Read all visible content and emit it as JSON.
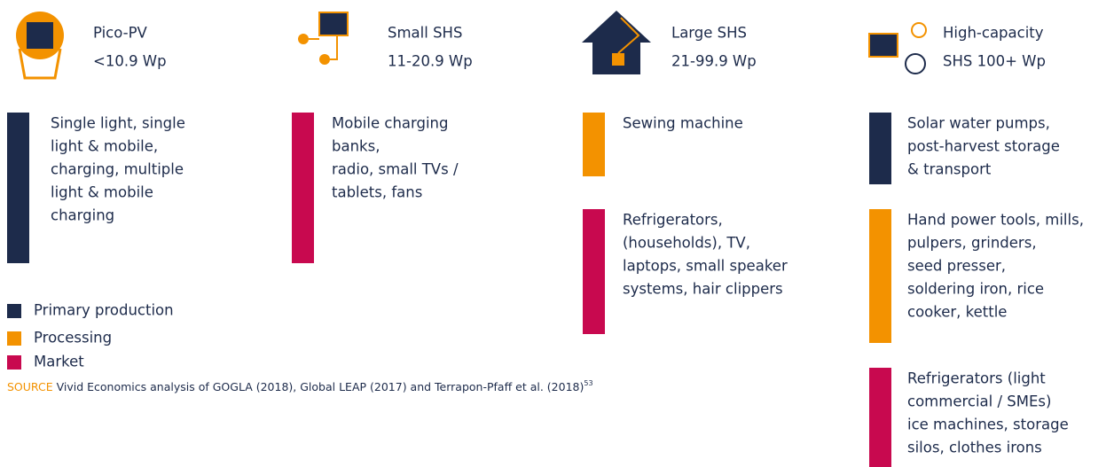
{
  "columns": [
    {
      "title": [
        "Pico-PV",
        "<10.9 Wp"
      ],
      "groups": [
        {
          "color": "#1d2b4b",
          "lines": [
            "Single light, single",
            "light & mobile,",
            "charging, multiple",
            "light & mobile",
            "charging"
          ]
        }
      ]
    },
    {
      "title": [
        "Small SHS",
        "11-20.9 Wp"
      ],
      "groups": [
        {
          "color": "#c8094f",
          "lines": [
            "Mobile charging",
            "banks,",
            "radio, small TVs /",
            "tablets, fans"
          ]
        }
      ]
    },
    {
      "title": [
        "Large SHS",
        "21-99.9 Wp"
      ],
      "groups": [
        {
          "color": "#f39200",
          "lines": [
            "Sewing machine"
          ]
        },
        {
          "color": "#c8094f",
          "lines": [
            "Refrigerators,",
            "(households), TV,",
            "laptops, small speaker",
            "systems, hair clippers"
          ]
        }
      ]
    },
    {
      "title": [
        "High-capacity",
        "SHS 100+ Wp"
      ],
      "groups": [
        {
          "color": "#1d2b4b",
          "lines": [
            "Solar water pumps,",
            "post-harvest storage",
            "& transport"
          ]
        },
        {
          "color": "#f39200",
          "lines": [
            "Hand power tools, mills,",
            "pulpers, grinders,",
            "seed presser,",
            "soldering iron, rice",
            "cooker, kettle"
          ]
        },
        {
          "color": "#c8094f",
          "lines": [
            "Refrigerators (light",
            "commercial / SMEs)",
            "ice machines, storage",
            "silos, clothes irons"
          ]
        }
      ]
    }
  ],
  "legend": [
    {
      "label": "Primary production",
      "color": "#1d2b4b"
    },
    {
      "label": "Processing",
      "color": "#f39200"
    },
    {
      "label": "Market",
      "color": "#c8094f"
    }
  ],
  "source": {
    "label": "SOURCE",
    "text": "Vivid Economics analysis of GOGLA (2018), Global LEAP (2017) and Terrapon-Pfaff et al. (2018)",
    "note": "53"
  }
}
